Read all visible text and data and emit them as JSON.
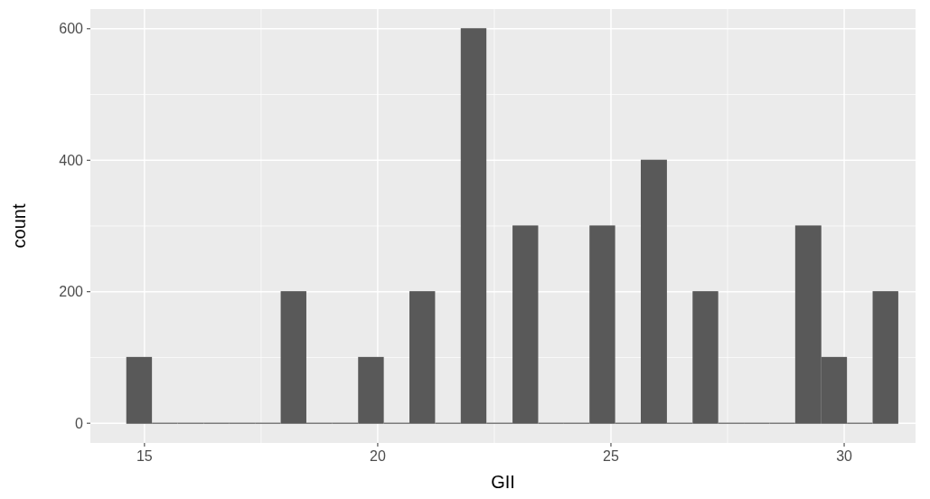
{
  "chart_data": {
    "type": "histogram",
    "xlabel": "GII",
    "ylabel": "count",
    "bins": [
      14.61,
      15.16,
      15.71,
      16.27,
      16.82,
      17.37,
      17.92,
      18.47,
      19.02,
      19.58,
      20.13,
      20.68,
      21.23,
      21.78,
      22.33,
      22.89,
      23.44,
      23.99,
      24.54,
      25.09,
      25.64,
      26.2,
      26.75,
      27.3,
      27.85,
      28.4,
      28.95,
      29.51,
      30.06,
      30.61,
      31.16
    ],
    "values": [
      100,
      0,
      0,
      0,
      0,
      0,
      200,
      0,
      0,
      100,
      0,
      200,
      0,
      600,
      0,
      300,
      0,
      0,
      300,
      0,
      400,
      0,
      200,
      0,
      0,
      0,
      300,
      100,
      0,
      200
    ],
    "color": "#595959",
    "xlim": [
      13.84,
      31.53
    ],
    "ylim": [
      -30,
      630
    ],
    "xticks": [
      15,
      20,
      25,
      30
    ],
    "yticks": [
      0,
      200,
      400,
      600
    ],
    "grid": true
  }
}
